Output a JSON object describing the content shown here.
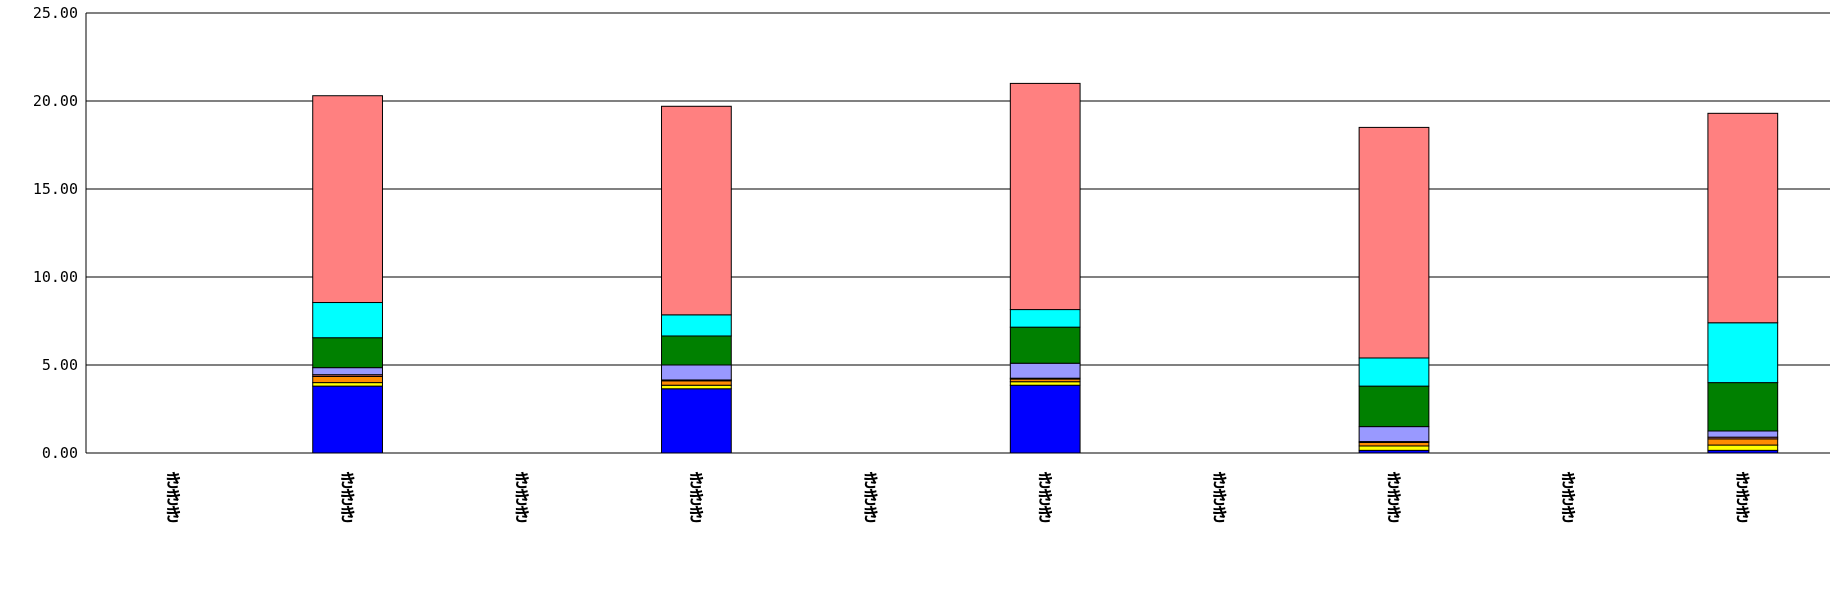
{
  "chart_data": {
    "type": "bar",
    "stacked": true,
    "title": "",
    "xlabel": "",
    "ylabel": "",
    "ylim": [
      0,
      25
    ],
    "y_ticks": [
      0,
      5,
      10,
      15,
      20,
      25
    ],
    "y_tick_labels": [
      "0.00",
      "5.00",
      "10.00",
      "15.00",
      "20.00",
      "25.00"
    ],
    "grid": true,
    "legend": "none",
    "categories": [
      "ききき",
      "ききき",
      "ききき",
      "ききき",
      "ききき",
      "ききき",
      "ききき",
      "ききき",
      "ききき",
      "ききき"
    ],
    "series": [
      {
        "color": "#0000ff",
        "values": [
          0,
          3.8,
          0,
          3.65,
          0,
          3.85,
          0,
          0.15,
          0,
          0.15
        ]
      },
      {
        "color": "#ffff00",
        "values": [
          0,
          0.2,
          0,
          0.2,
          0,
          0.2,
          0,
          0.25,
          0,
          0.3
        ]
      },
      {
        "color": "#ff8c00",
        "values": [
          0,
          0.35,
          0,
          0.25,
          0,
          0.15,
          0,
          0.2,
          0,
          0.35
        ]
      },
      {
        "color": "#cc6666",
        "values": [
          0,
          0.1,
          0,
          0.05,
          0,
          0.05,
          0,
          0.05,
          0,
          0.1
        ]
      },
      {
        "color": "#9999ff",
        "values": [
          0,
          0.4,
          0,
          0.85,
          0,
          0.85,
          0,
          0.85,
          0,
          0.35
        ]
      },
      {
        "color": "#008000",
        "values": [
          0,
          1.7,
          0,
          1.65,
          0,
          2.05,
          0,
          2.3,
          0,
          2.75
        ]
      },
      {
        "color": "#00ffff",
        "values": [
          0,
          2.0,
          0,
          1.2,
          0,
          1.0,
          0,
          1.6,
          0,
          3.4
        ]
      },
      {
        "color": "#ff8080",
        "values": [
          0,
          11.75,
          0,
          11.85,
          0,
          12.85,
          0,
          13.1,
          0,
          11.9
        ]
      }
    ]
  }
}
